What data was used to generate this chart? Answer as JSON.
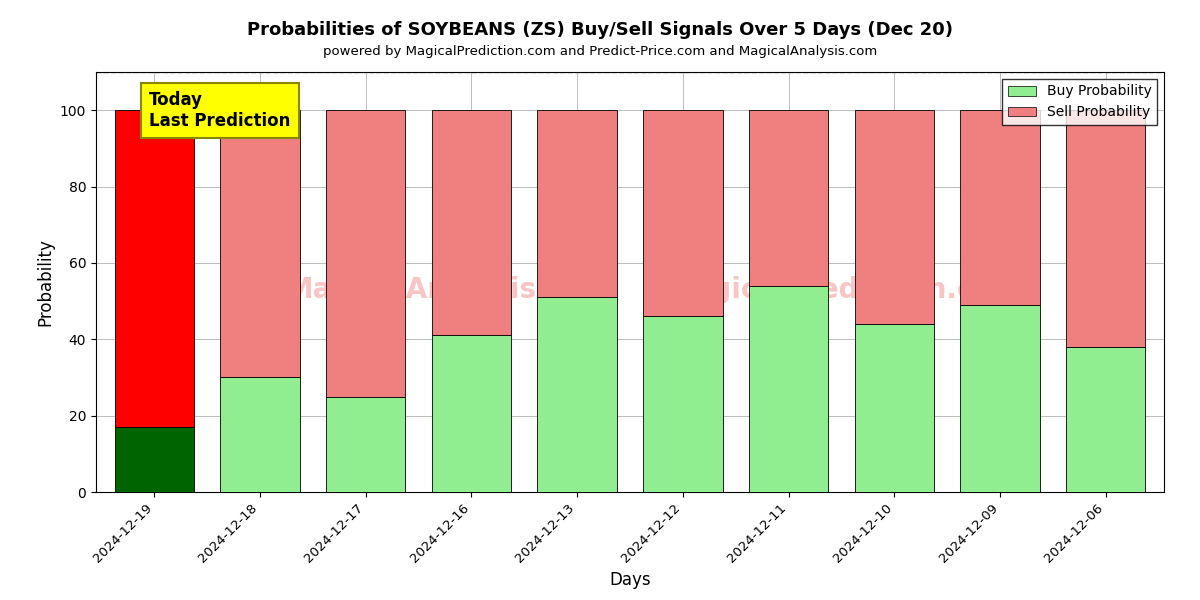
{
  "title": "Probabilities of SOYBEANS (ZS) Buy/Sell Signals Over 5 Days (Dec 20)",
  "subtitle": "powered by MagicalPrediction.com and Predict-Price.com and MagicalAnalysis.com",
  "xlabel": "Days",
  "ylabel": "Probability",
  "categories": [
    "2024-12-19",
    "2024-12-18",
    "2024-12-17",
    "2024-12-16",
    "2024-12-13",
    "2024-12-12",
    "2024-12-11",
    "2024-12-10",
    "2024-12-09",
    "2024-12-06"
  ],
  "buy_values": [
    17,
    30,
    25,
    41,
    51,
    46,
    54,
    44,
    49,
    38
  ],
  "sell_values": [
    83,
    70,
    75,
    59,
    49,
    54,
    46,
    56,
    51,
    62
  ],
  "buy_color_today": "#006400",
  "sell_color_today": "#ff0000",
  "buy_color_normal": "#90EE90",
  "sell_color_normal": "#F08080",
  "today_label_bg": "#ffff00",
  "today_label_text": "Today\nLast Prediction",
  "legend_buy": "Buy Probability",
  "legend_sell": "Sell Probability",
  "ylim": [
    0,
    110
  ],
  "dashed_line_y": 110,
  "bar_width": 0.75,
  "today_index": 0
}
